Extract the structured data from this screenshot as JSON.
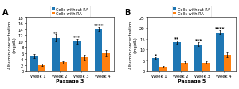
{
  "chart_data": [
    {
      "type": "bar",
      "title": "A",
      "x_label": "Passage 3",
      "y_label": "Albumin concentration\n(mg/dL)",
      "categories": [
        "Week 1",
        "Week 2",
        "Week 3",
        "Week 4"
      ],
      "series": [
        {
          "name": "Cells without RA",
          "values": [
            5.0,
            11.0,
            10.0,
            14.0
          ],
          "errors": [
            0.6,
            1.2,
            0.8,
            0.7
          ],
          "significance": [
            null,
            "**",
            "***",
            "****"
          ]
        },
        {
          "name": "Cells with RA",
          "values": [
            2.0,
            3.0,
            4.5,
            6.0
          ],
          "errors": [
            0.4,
            0.4,
            0.9,
            1.1
          ]
        }
      ],
      "ylim": [
        0,
        18
      ],
      "yticks": [
        0,
        2,
        4,
        6,
        8,
        10,
        12,
        14,
        16,
        18
      ],
      "legend": "upper center"
    },
    {
      "type": "bar",
      "title": "B",
      "x_label": "Passage 5",
      "y_label": "Albumin concentration\n(mg/dL)",
      "categories": [
        "Week 1",
        "Week 2",
        "Week 3",
        "Week 4"
      ],
      "series": [
        {
          "name": "Cells without RA",
          "values": [
            6.0,
            13.5,
            12.5,
            18.0
          ],
          "errors": [
            0.5,
            0.8,
            0.8,
            1.0
          ],
          "significance": [
            "*",
            "**",
            "***",
            "****"
          ]
        },
        {
          "name": "Cells with RA",
          "values": [
            2.0,
            4.0,
            4.0,
            7.5
          ],
          "errors": [
            0.5,
            0.6,
            0.5,
            1.0
          ]
        }
      ],
      "ylim": [
        0,
        25
      ],
      "yticks": [
        0,
        5,
        10,
        15,
        20,
        25
      ],
      "legend": "upper center"
    }
  ]
}
